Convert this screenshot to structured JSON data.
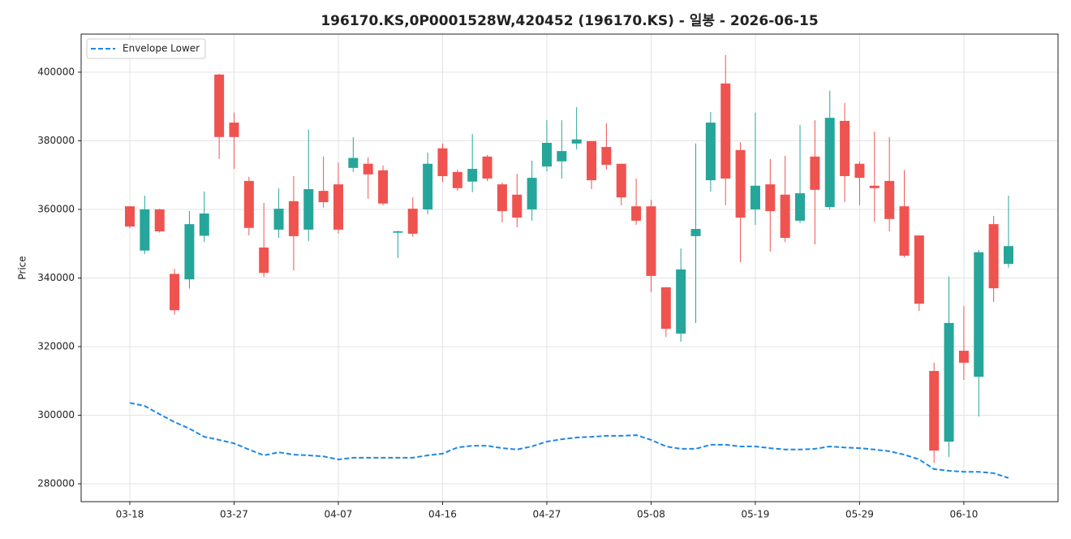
{
  "chart_data": {
    "type": "candlestick",
    "title": "196170.KS,0P0001528W,420452 (196170.KS) - 일봉 - 2026-06-15",
    "y_label": "Price",
    "categories": [
      "03-18",
      null,
      null,
      null,
      null,
      null,
      null,
      "03-27",
      null,
      null,
      null,
      null,
      null,
      null,
      "04-07",
      null,
      null,
      null,
      null,
      null,
      null,
      "04-16",
      null,
      null,
      null,
      null,
      null,
      null,
      "04-27",
      null,
      null,
      null,
      null,
      null,
      null,
      "05-08",
      null,
      null,
      null,
      null,
      null,
      null,
      "05-19",
      null,
      null,
      null,
      null,
      null,
      null,
      "05-29",
      null,
      null,
      null,
      null,
      null,
      null,
      "06-10",
      null,
      null,
      null
    ],
    "open": [
      360900,
      348000,
      360000,
      341200,
      339600,
      352300,
      399300,
      385300,
      368300,
      348900,
      354100,
      362400,
      354100,
      365400,
      367300,
      372100,
      373300,
      371400,
      353200,
      360200,
      360000,
      377800,
      370900,
      368100,
      375400,
      367300,
      364300,
      360000,
      372500,
      374000,
      379200,
      379900,
      378200,
      373300,
      360900,
      360900,
      337300,
      323800,
      352200,
      368500,
      396700,
      377300,
      360000,
      367300,
      364300,
      356700,
      375400,
      360700,
      385800,
      373300,
      366900,
      368300,
      360900,
      352400,
      312900,
      292300,
      318800,
      311200,
      355700,
      344100
    ],
    "high": [
      361000,
      364000,
      360200,
      342700,
      359500,
      365200,
      399500,
      388200,
      369500,
      361900,
      366100,
      369700,
      383200,
      375400,
      373700,
      381100,
      375200,
      372800,
      353800,
      363500,
      376600,
      379200,
      371600,
      382000,
      375900,
      367800,
      370400,
      374200,
      386000,
      386000,
      389800,
      379900,
      385100,
      373300,
      369000,
      362800,
      337300,
      348600,
      379200,
      388400,
      405000,
      379600,
      388200,
      374700,
      375600,
      384600,
      386000,
      394600,
      391000,
      374000,
      382700,
      381100,
      371400,
      352400,
      315300,
      340400,
      331800,
      348200,
      358100,
      364000
    ],
    "low": [
      354500,
      347000,
      353200,
      329300,
      336900,
      350500,
      374700,
      371800,
      352400,
      340300,
      351700,
      342200,
      350800,
      360500,
      352900,
      370900,
      363100,
      361200,
      345800,
      352000,
      358600,
      368000,
      365400,
      365000,
      368300,
      356200,
      354800,
      356700,
      371100,
      369000,
      377500,
      365900,
      371600,
      361200,
      355500,
      335900,
      322800,
      321400,
      326900,
      365200,
      361200,
      344600,
      355500,
      347700,
      350500,
      356000,
      349800,
      360000,
      362100,
      361200,
      356400,
      353600,
      346000,
      330400,
      286100,
      287800,
      310300,
      299600,
      333000,
      343000
    ],
    "close": [
      355000,
      360000,
      353600,
      330600,
      355700,
      358800,
      381100,
      381100,
      354600,
      341500,
      360200,
      352200,
      365900,
      362100,
      354100,
      375000,
      370200,
      361700,
      353600,
      352900,
      373300,
      369700,
      366200,
      371800,
      369000,
      359500,
      357600,
      369200,
      379400,
      377000,
      380400,
      368500,
      373000,
      363500,
      356700,
      340600,
      325200,
      342500,
      354300,
      385300,
      369000,
      357600,
      366900,
      359500,
      351700,
      364700,
      365700,
      386700,
      369700,
      369200,
      366200,
      357200,
      346500,
      332500,
      289700,
      326900,
      315300,
      347500,
      337000,
      349300
    ],
    "up_color": "#26a69a",
    "down_color": "#ef5350",
    "series": [
      {
        "name": "Envelope Lower",
        "color": "#1e88e5",
        "values": [
          303600,
          302700,
          300300,
          298000,
          296100,
          293700,
          292800,
          291800,
          290000,
          288300,
          289200,
          288500,
          288300,
          288000,
          287100,
          287600,
          287600,
          287600,
          287600,
          287600,
          288300,
          288800,
          290600,
          291100,
          291100,
          290400,
          290000,
          290900,
          292300,
          293000,
          293500,
          293700,
          294000,
          294000,
          294200,
          292800,
          290900,
          290200,
          290200,
          291400,
          291400,
          290900,
          290900,
          290400,
          290000,
          290000,
          290200,
          290900,
          290600,
          290400,
          290000,
          289500,
          288500,
          287100,
          284300,
          283800,
          283500,
          283500,
          283100,
          281700
        ]
      }
    ],
    "ylim": [
      274800,
      411100
    ],
    "yticks": [
      280000,
      300000,
      320000,
      340000,
      360000,
      380000,
      400000
    ],
    "grid": true,
    "legend": "upper left"
  }
}
